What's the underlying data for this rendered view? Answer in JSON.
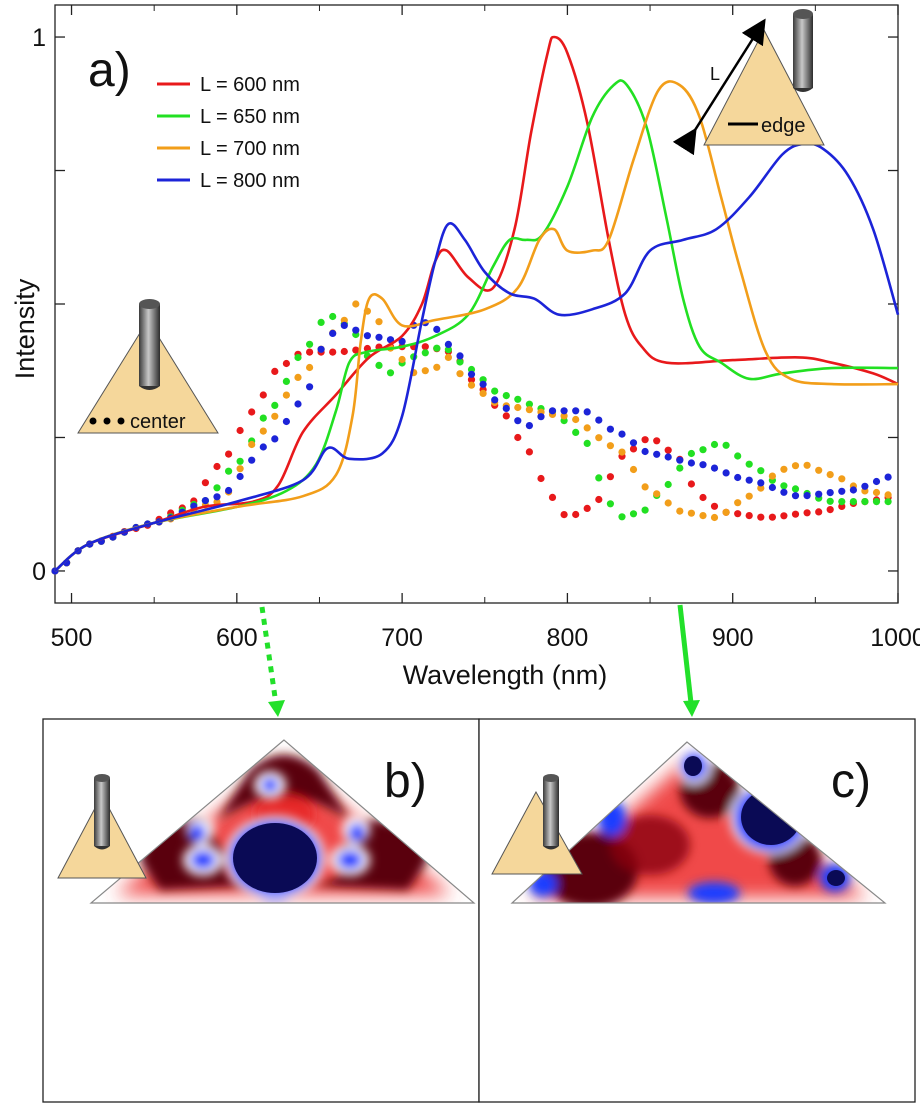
{
  "figure": {
    "panel_a_label": "a)",
    "panel_b_label": "b)",
    "panel_c_label": "c)",
    "inset_edge_length_label": "L",
    "inset_edge_label": "edge",
    "inset_center_label": "center",
    "colors": {
      "tip_fill": "#f5d79b",
      "arrow_green": "#22e02a",
      "field_red": "#e41a1c",
      "field_dark_red": "#5a0010",
      "field_blue": "#1f3cff",
      "field_navy": "#0a0a55"
    }
  },
  "chart_data": {
    "type": "line",
    "xlabel": "Wavelength (nm)",
    "ylabel": "Intensity",
    "xlim": [
      490,
      1000
    ],
    "ylim": [
      -0.06,
      1.06
    ],
    "xticks": [
      500,
      600,
      700,
      800,
      900,
      1000
    ],
    "yticks": [
      0,
      1
    ],
    "legend_position": "top-left",
    "legend": [
      "L = 600 nm",
      "L = 650 nm",
      "L = 700 nm",
      "L = 800 nm"
    ],
    "series": [
      {
        "name": "L = 600 nm",
        "style": "solid",
        "color": "#e8191b",
        "points": [
          [
            490,
            0
          ],
          [
            510,
            0.05
          ],
          [
            550,
            0.09
          ],
          [
            580,
            0.12
          ],
          [
            610,
            0.13
          ],
          [
            625,
            0.16
          ],
          [
            640,
            0.26
          ],
          [
            660,
            0.33
          ],
          [
            680,
            0.4
          ],
          [
            700,
            0.44
          ],
          [
            712,
            0.5
          ],
          [
            720,
            0.58
          ],
          [
            727,
            0.6
          ],
          [
            740,
            0.55
          ],
          [
            755,
            0.53
          ],
          [
            768,
            0.64
          ],
          [
            778,
            0.82
          ],
          [
            788,
            0.97
          ],
          [
            792,
            1.0
          ],
          [
            800,
            0.97
          ],
          [
            812,
            0.84
          ],
          [
            825,
            0.62
          ],
          [
            835,
            0.48
          ],
          [
            845,
            0.42
          ],
          [
            860,
            0.39
          ],
          [
            900,
            0.395
          ],
          [
            940,
            0.4
          ],
          [
            960,
            0.39
          ],
          [
            985,
            0.37
          ],
          [
            1000,
            0.35
          ]
        ]
      },
      {
        "name": "L = 650 nm",
        "style": "solid",
        "color": "#22e022",
        "points": [
          [
            490,
            0
          ],
          [
            510,
            0.05
          ],
          [
            550,
            0.09
          ],
          [
            600,
            0.12
          ],
          [
            630,
            0.15
          ],
          [
            648,
            0.2
          ],
          [
            660,
            0.3
          ],
          [
            668,
            0.39
          ],
          [
            678,
            0.41
          ],
          [
            700,
            0.42
          ],
          [
            720,
            0.44
          ],
          [
            740,
            0.48
          ],
          [
            755,
            0.57
          ],
          [
            765,
            0.62
          ],
          [
            775,
            0.62
          ],
          [
            785,
            0.63
          ],
          [
            800,
            0.72
          ],
          [
            815,
            0.85
          ],
          [
            828,
            0.91
          ],
          [
            836,
            0.91
          ],
          [
            848,
            0.83
          ],
          [
            860,
            0.66
          ],
          [
            870,
            0.51
          ],
          [
            880,
            0.42
          ],
          [
            893,
            0.39
          ],
          [
            910,
            0.36
          ],
          [
            930,
            0.37
          ],
          [
            960,
            0.38
          ],
          [
            1000,
            0.38
          ]
        ]
      },
      {
        "name": "L = 700 nm",
        "style": "solid",
        "color": "#f29e1a",
        "points": [
          [
            490,
            0
          ],
          [
            510,
            0.05
          ],
          [
            550,
            0.09
          ],
          [
            600,
            0.12
          ],
          [
            640,
            0.14
          ],
          [
            660,
            0.18
          ],
          [
            670,
            0.29
          ],
          [
            675,
            0.43
          ],
          [
            680,
            0.51
          ],
          [
            688,
            0.51
          ],
          [
            700,
            0.46
          ],
          [
            720,
            0.47
          ],
          [
            750,
            0.49
          ],
          [
            770,
            0.53
          ],
          [
            783,
            0.62
          ],
          [
            792,
            0.64
          ],
          [
            800,
            0.6
          ],
          [
            815,
            0.6
          ],
          [
            825,
            0.62
          ],
          [
            840,
            0.77
          ],
          [
            855,
            0.9
          ],
          [
            868,
            0.91
          ],
          [
            880,
            0.85
          ],
          [
            893,
            0.7
          ],
          [
            905,
            0.56
          ],
          [
            920,
            0.41
          ],
          [
            935,
            0.36
          ],
          [
            960,
            0.35
          ],
          [
            1000,
            0.35
          ]
        ]
      },
      {
        "name": "L = 800 nm",
        "style": "solid",
        "color": "#1c24d8",
        "points": [
          [
            490,
            0
          ],
          [
            510,
            0.05
          ],
          [
            550,
            0.09
          ],
          [
            600,
            0.13
          ],
          [
            640,
            0.17
          ],
          [
            655,
            0.23
          ],
          [
            668,
            0.21
          ],
          [
            688,
            0.22
          ],
          [
            700,
            0.29
          ],
          [
            712,
            0.47
          ],
          [
            720,
            0.58
          ],
          [
            728,
            0.65
          ],
          [
            738,
            0.62
          ],
          [
            750,
            0.56
          ],
          [
            765,
            0.52
          ],
          [
            780,
            0.51
          ],
          [
            795,
            0.48
          ],
          [
            815,
            0.49
          ],
          [
            835,
            0.52
          ],
          [
            850,
            0.6
          ],
          [
            870,
            0.62
          ],
          [
            890,
            0.64
          ],
          [
            910,
            0.7
          ],
          [
            930,
            0.78
          ],
          [
            943,
            0.8
          ],
          [
            955,
            0.79
          ],
          [
            970,
            0.74
          ],
          [
            985,
            0.64
          ],
          [
            1000,
            0.48
          ]
        ]
      },
      {
        "name": "L = 600 nm",
        "style": "dotted",
        "color": "#e8191b",
        "points": [
          [
            490,
            0
          ],
          [
            510,
            0.05
          ],
          [
            540,
            0.08
          ],
          [
            570,
            0.12
          ],
          [
            590,
            0.2
          ],
          [
            610,
            0.3
          ],
          [
            625,
            0.38
          ],
          [
            640,
            0.41
          ],
          [
            660,
            0.41
          ],
          [
            690,
            0.42
          ],
          [
            715,
            0.42
          ],
          [
            730,
            0.41
          ],
          [
            745,
            0.35
          ],
          [
            760,
            0.3
          ],
          [
            775,
            0.23
          ],
          [
            790,
            0.14
          ],
          [
            800,
            0.1
          ],
          [
            815,
            0.12
          ],
          [
            835,
            0.22
          ],
          [
            850,
            0.25
          ],
          [
            865,
            0.22
          ],
          [
            880,
            0.14
          ],
          [
            895,
            0.11
          ],
          [
            920,
            0.1
          ],
          [
            950,
            0.11
          ],
          [
            980,
            0.13
          ],
          [
            1000,
            0.14
          ]
        ]
      },
      {
        "name": "L = 650 nm",
        "style": "dotted",
        "color": "#22e022",
        "points": [
          [
            490,
            0
          ],
          [
            510,
            0.05
          ],
          [
            550,
            0.09
          ],
          [
            580,
            0.13
          ],
          [
            600,
            0.2
          ],
          [
            620,
            0.3
          ],
          [
            640,
            0.41
          ],
          [
            655,
            0.48
          ],
          [
            668,
            0.46
          ],
          [
            680,
            0.4
          ],
          [
            692,
            0.37
          ],
          [
            705,
            0.4
          ],
          [
            725,
            0.42
          ],
          [
            740,
            0.38
          ],
          [
            760,
            0.33
          ],
          [
            790,
            0.3
          ],
          [
            810,
            0.25
          ],
          [
            820,
            0.17
          ],
          [
            830,
            0.1
          ],
          [
            845,
            0.11
          ],
          [
            860,
            0.16
          ],
          [
            875,
            0.22
          ],
          [
            893,
            0.24
          ],
          [
            910,
            0.2
          ],
          [
            930,
            0.16
          ],
          [
            960,
            0.13
          ],
          [
            1000,
            0.13
          ]
        ]
      },
      {
        "name": "L = 700 nm",
        "style": "dotted",
        "color": "#f29e1a",
        "points": [
          [
            490,
            0
          ],
          [
            510,
            0.05
          ],
          [
            550,
            0.09
          ],
          [
            590,
            0.13
          ],
          [
            615,
            0.26
          ],
          [
            640,
            0.37
          ],
          [
            660,
            0.45
          ],
          [
            672,
            0.5
          ],
          [
            683,
            0.48
          ],
          [
            695,
            0.41
          ],
          [
            708,
            0.37
          ],
          [
            720,
            0.38
          ],
          [
            728,
            0.4
          ],
          [
            740,
            0.35
          ],
          [
            760,
            0.31
          ],
          [
            800,
            0.29
          ],
          [
            830,
            0.23
          ],
          [
            850,
            0.15
          ],
          [
            870,
            0.11
          ],
          [
            890,
            0.1
          ],
          [
            910,
            0.14
          ],
          [
            930,
            0.19
          ],
          [
            942,
            0.2
          ],
          [
            960,
            0.18
          ],
          [
            980,
            0.15
          ],
          [
            1000,
            0.14
          ]
        ]
      },
      {
        "name": "L = 800 nm",
        "style": "dotted",
        "color": "#1c24d8",
        "points": [
          [
            490,
            0
          ],
          [
            510,
            0.05
          ],
          [
            550,
            0.09
          ],
          [
            590,
            0.14
          ],
          [
            620,
            0.24
          ],
          [
            640,
            0.32
          ],
          [
            655,
            0.44
          ],
          [
            665,
            0.46
          ],
          [
            680,
            0.44
          ],
          [
            700,
            0.43
          ],
          [
            710,
            0.47
          ],
          [
            718,
            0.46
          ],
          [
            730,
            0.42
          ],
          [
            745,
            0.36
          ],
          [
            760,
            0.31
          ],
          [
            775,
            0.27
          ],
          [
            790,
            0.3
          ],
          [
            810,
            0.3
          ],
          [
            830,
            0.26
          ],
          [
            850,
            0.22
          ],
          [
            880,
            0.2
          ],
          [
            910,
            0.17
          ],
          [
            940,
            0.14
          ],
          [
            970,
            0.15
          ],
          [
            1000,
            0.18
          ]
        ]
      }
    ]
  }
}
